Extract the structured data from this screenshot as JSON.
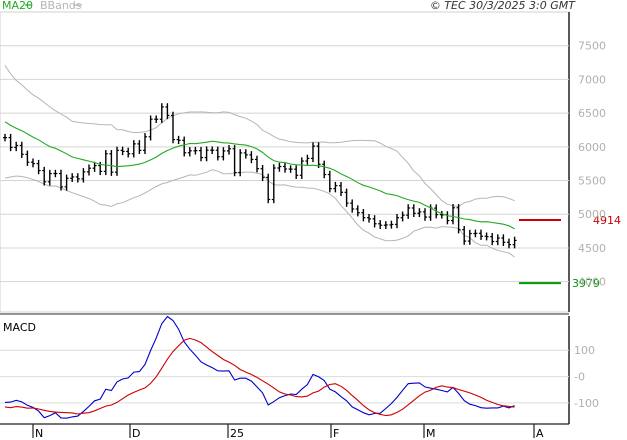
{
  "header": {
    "legend": [
      {
        "label": "MA20",
        "color": "#22aa22"
      },
      {
        "label": "BBands",
        "color": "#b5b5b5"
      }
    ],
    "source": "© TEC 30/3/2025 3:0 GMT"
  },
  "chart_data": [
    {
      "type": "ohlc",
      "name": "price",
      "yticks": [
        4000,
        4500,
        5000,
        5500,
        6000,
        6500,
        7000,
        7500
      ],
      "ylim": [
        3550,
        8000
      ],
      "xlabels": [
        "N",
        "D",
        "25",
        "F",
        "M",
        "A"
      ],
      "close": [
        6137,
        5991,
        6020,
        5889,
        5772,
        5751,
        5648,
        5481,
        5604,
        5604,
        5406,
        5533,
        5554,
        5525,
        5629,
        5683,
        5722,
        5636,
        5897,
        5624,
        5948,
        5932,
        5897,
        6044,
        5948,
        6149,
        6410,
        6409,
        6592,
        6466,
        6108,
        6097,
        5912,
        5941,
        5944,
        5841,
        5951,
        5949,
        5853,
        5939,
        5971,
        5619,
        5910,
        5881,
        5813,
        5676,
        5547,
        5219,
        5686,
        5708,
        5671,
        5669,
        5578,
        5789,
        5828,
        6011,
        5741,
        5589,
        5380,
        5424,
        5325,
        5165,
        5078,
        5023,
        4949,
        4931,
        4859,
        4837,
        4842,
        4849,
        4949,
        4986,
        5093,
        5014,
        5035,
        4958,
        5091,
        4994,
        4990,
        4906,
        5096,
        4771,
        4602,
        4714,
        4717,
        4674,
        4667,
        4596,
        4647,
        4584,
        4549,
        4612
      ],
      "ma20": [
        6372,
        6318,
        6276,
        6240,
        6192,
        6144,
        6104,
        6053,
        6004,
        5978,
        5938,
        5896,
        5849,
        5828,
        5808,
        5789,
        5767,
        5737,
        5731,
        5721,
        5706,
        5712,
        5718,
        5729,
        5744,
        5769,
        5806,
        5848,
        5903,
        5946,
        5981,
        6010,
        6029,
        6050,
        6047,
        6059,
        6068,
        6083,
        6073,
        6060,
        6055,
        6044,
        6033,
        6025,
        6004,
        5969,
        5916,
        5848,
        5796,
        5773,
        5766,
        5745,
        5734,
        5731,
        5724,
        5728,
        5717,
        5706,
        5682,
        5648,
        5598,
        5560,
        5518,
        5468,
        5430,
        5406,
        5376,
        5346,
        5308,
        5292,
        5276,
        5243,
        5217,
        5195,
        5175,
        5134,
        5094,
        5043,
        5010,
        4979,
        4967,
        4951,
        4929,
        4921,
        4901,
        4888,
        4889,
        4877,
        4865,
        4852,
        4829,
        4783
      ],
      "bb_upper": [
        7208,
        7084,
        6985,
        6920,
        6842,
        6772,
        6722,
        6657,
        6592,
        6536,
        6487,
        6440,
        6379,
        6365,
        6354,
        6346,
        6340,
        6330,
        6327,
        6327,
        6256,
        6252,
        6227,
        6213,
        6214,
        6223,
        6248,
        6285,
        6356,
        6421,
        6460,
        6491,
        6504,
        6516,
        6516,
        6518,
        6513,
        6505,
        6507,
        6518,
        6510,
        6478,
        6448,
        6425,
        6383,
        6331,
        6243,
        6203,
        6154,
        6112,
        6097,
        6074,
        6065,
        6062,
        6058,
        6069,
        6070,
        6071,
        6062,
        6060,
        6068,
        6079,
        6093,
        6095,
        6096,
        6093,
        6090,
        6056,
        6008,
        5975,
        5936,
        5844,
        5755,
        5642,
        5570,
        5458,
        5381,
        5292,
        5203,
        5147,
        5129,
        5112,
        5172,
        5189,
        5224,
        5236,
        5236,
        5257,
        5265,
        5260,
        5233,
        5201
      ],
      "bb_lower": [
        5536,
        5552,
        5567,
        5560,
        5542,
        5516,
        5486,
        5449,
        5416,
        5420,
        5389,
        5352,
        5319,
        5291,
        5262,
        5232,
        5194,
        5144,
        5135,
        5115,
        5156,
        5172,
        5209,
        5245,
        5274,
        5315,
        5364,
        5411,
        5450,
        5471,
        5502,
        5529,
        5554,
        5584,
        5578,
        5600,
        5623,
        5661,
        5639,
        5602,
        5600,
        5610,
        5618,
        5625,
        5625,
        5607,
        5589,
        5493,
        5438,
        5434,
        5435,
        5416,
        5403,
        5400,
        5390,
        5387,
        5364,
        5341,
        5302,
        5236,
        5128,
        5041,
        4943,
        4841,
        4764,
        4719,
        4662,
        4636,
        4608,
        4609,
        4616,
        4642,
        4679,
        4748,
        4780,
        4810,
        4807,
        4794,
        4817,
        4811,
        4805,
        4790,
        4686,
        4653,
        4578,
        4540,
        4542,
        4497,
        4465,
        4444,
        4425,
        4365
      ],
      "levels": [
        {
          "label": "4914",
          "value": 4914,
          "color": "#cc0000"
        },
        {
          "label": "3979",
          "value": 3979,
          "color": "#009900"
        }
      ]
    },
    {
      "type": "line",
      "title": "MACD",
      "yticks": [
        100,
        0,
        -100
      ],
      "tick_labels": [
        "100",
        "-0",
        "-100"
      ],
      "ylim": [
        -180,
        230
      ],
      "series": [
        {
          "color": "#0000cc",
          "values": [
            -98,
            -97,
            -90,
            -96,
            -109,
            -117,
            -131,
            -156,
            -148,
            -137,
            -157,
            -158,
            -153,
            -150,
            -132,
            -113,
            -92,
            -86,
            -48,
            -53,
            -20,
            -9,
            -5,
            17,
            19,
            46,
            99,
            146,
            201,
            228,
            213,
            180,
            132,
            104,
            81,
            56,
            44,
            34,
            22,
            21,
            22,
            -13,
            -6,
            -6,
            -17,
            -39,
            -62,
            -108,
            -95,
            -80,
            -72,
            -66,
            -68,
            -48,
            -30,
            8,
            -1,
            -15,
            -48,
            -58,
            -76,
            -92,
            -115,
            -126,
            -137,
            -145,
            -140,
            -139,
            -121,
            -102,
            -79,
            -52,
            -27,
            -25,
            -24,
            -39,
            -44,
            -48,
            -53,
            -58,
            -41,
            -64,
            -91,
            -105,
            -110,
            -118,
            -120,
            -119,
            -119,
            -112,
            -119,
            -110
          ]
        },
        {
          "color": "#cc0000",
          "values": [
            -115,
            -118,
            -114,
            -116,
            -120,
            -119,
            -123,
            -128,
            -132,
            -135,
            -136,
            -137,
            -138,
            -142,
            -139,
            -137,
            -130,
            -121,
            -112,
            -108,
            -98,
            -84,
            -70,
            -60,
            -51,
            -43,
            -26,
            -1,
            32,
            66,
            95,
            117,
            138,
            145,
            139,
            129,
            112,
            95,
            80,
            65,
            55,
            43,
            27,
            17,
            8,
            -3,
            -16,
            -29,
            -43,
            -58,
            -66,
            -70,
            -76,
            -77,
            -74,
            -62,
            -55,
            -40,
            -30,
            -27,
            -37,
            -52,
            -72,
            -90,
            -110,
            -126,
            -137,
            -143,
            -148,
            -145,
            -136,
            -124,
            -107,
            -90,
            -73,
            -59,
            -52,
            -41,
            -35,
            -40,
            -42,
            -49,
            -55,
            -62,
            -70,
            -79,
            -90,
            -98,
            -106,
            -111,
            -113,
            -116
          ]
        }
      ]
    }
  ]
}
